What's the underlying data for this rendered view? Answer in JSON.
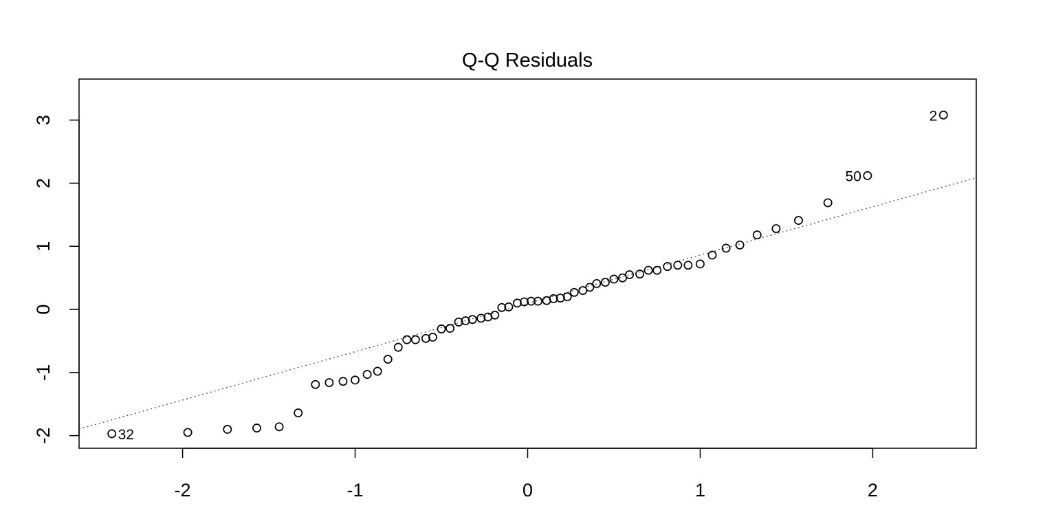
{
  "chart_data": {
    "type": "scatter",
    "title": "Q-Q Residuals",
    "xlabel": "",
    "ylabel": "",
    "xlim": [
      -2.6,
      2.6
    ],
    "ylim": [
      -2.2,
      3.65
    ],
    "x_ticks": [
      -2,
      -1,
      0,
      1,
      2
    ],
    "y_ticks": [
      -2,
      -1,
      0,
      1,
      2,
      3
    ],
    "grid": false,
    "reference_line": {
      "slope": 0.7656,
      "intercept": 0.0956,
      "style": "dotted"
    },
    "points": [
      {
        "x": -2.41,
        "y": -1.97,
        "label": "32"
      },
      {
        "x": -1.97,
        "y": -1.95
      },
      {
        "x": -1.74,
        "y": -1.9
      },
      {
        "x": -1.57,
        "y": -1.88
      },
      {
        "x": -1.44,
        "y": -1.86
      },
      {
        "x": -1.33,
        "y": -1.64
      },
      {
        "x": -1.23,
        "y": -1.19
      },
      {
        "x": -1.15,
        "y": -1.16
      },
      {
        "x": -1.07,
        "y": -1.14
      },
      {
        "x": -1.0,
        "y": -1.12
      },
      {
        "x": -0.93,
        "y": -1.03
      },
      {
        "x": -0.87,
        "y": -0.98
      },
      {
        "x": -0.81,
        "y": -0.79
      },
      {
        "x": -0.75,
        "y": -0.6
      },
      {
        "x": -0.7,
        "y": -0.48
      },
      {
        "x": -0.65,
        "y": -0.48
      },
      {
        "x": -0.59,
        "y": -0.46
      },
      {
        "x": -0.55,
        "y": -0.44
      },
      {
        "x": -0.5,
        "y": -0.31
      },
      {
        "x": -0.45,
        "y": -0.3
      },
      {
        "x": -0.4,
        "y": -0.2
      },
      {
        "x": -0.36,
        "y": -0.18
      },
      {
        "x": -0.32,
        "y": -0.16
      },
      {
        "x": -0.27,
        "y": -0.14
      },
      {
        "x": -0.23,
        "y": -0.12
      },
      {
        "x": -0.19,
        "y": -0.09
      },
      {
        "x": -0.15,
        "y": 0.03
      },
      {
        "x": -0.11,
        "y": 0.04
      },
      {
        "x": -0.06,
        "y": 0.1
      },
      {
        "x": -0.02,
        "y": 0.12
      },
      {
        "x": 0.02,
        "y": 0.13
      },
      {
        "x": 0.06,
        "y": 0.13
      },
      {
        "x": 0.11,
        "y": 0.14
      },
      {
        "x": 0.15,
        "y": 0.17
      },
      {
        "x": 0.19,
        "y": 0.18
      },
      {
        "x": 0.23,
        "y": 0.2
      },
      {
        "x": 0.27,
        "y": 0.27
      },
      {
        "x": 0.32,
        "y": 0.3
      },
      {
        "x": 0.36,
        "y": 0.35
      },
      {
        "x": 0.4,
        "y": 0.41
      },
      {
        "x": 0.45,
        "y": 0.43
      },
      {
        "x": 0.5,
        "y": 0.48
      },
      {
        "x": 0.55,
        "y": 0.5
      },
      {
        "x": 0.59,
        "y": 0.55
      },
      {
        "x": 0.65,
        "y": 0.56
      },
      {
        "x": 0.7,
        "y": 0.62
      },
      {
        "x": 0.75,
        "y": 0.62
      },
      {
        "x": 0.81,
        "y": 0.68
      },
      {
        "x": 0.87,
        "y": 0.7
      },
      {
        "x": 0.93,
        "y": 0.7
      },
      {
        "x": 1.0,
        "y": 0.72
      },
      {
        "x": 1.07,
        "y": 0.86
      },
      {
        "x": 1.15,
        "y": 0.97
      },
      {
        "x": 1.23,
        "y": 1.02
      },
      {
        "x": 1.33,
        "y": 1.18
      },
      {
        "x": 1.44,
        "y": 1.28
      },
      {
        "x": 1.57,
        "y": 1.41
      },
      {
        "x": 1.74,
        "y": 1.69
      },
      {
        "x": 1.97,
        "y": 2.12,
        "label": "50"
      },
      {
        "x": 2.41,
        "y": 3.08,
        "label": "2"
      }
    ]
  }
}
